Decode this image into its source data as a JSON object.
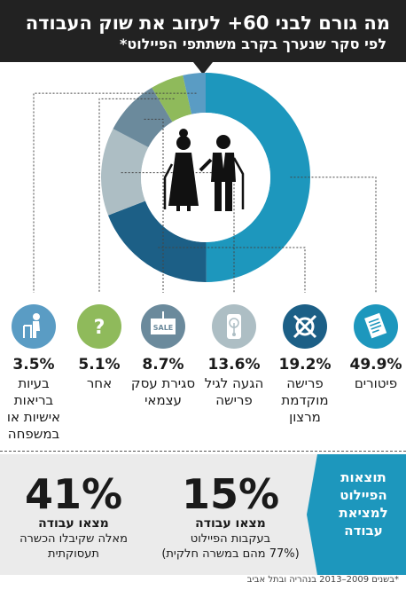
{
  "header": {
    "title": "מה גורם לבני 60+ לעזוב את שוק העבודה",
    "subtitle": "לפי סקר שנערך בקרב משתתפי הפיילוט*"
  },
  "chart_data": {
    "type": "pie",
    "style": "donut",
    "slices": [
      {
        "label": "פיטורים",
        "value": 49.9,
        "pct_text": "49.9%",
        "color": "#1d97bd",
        "icon": "document-icon"
      },
      {
        "label": "פרישה מוקדמת מרצון",
        "value": 19.2,
        "pct_text": "19.2%",
        "color": "#1c5f86",
        "icon": "broken-watch-icon"
      },
      {
        "label": "הגעה לגיל פרישה",
        "value": 13.6,
        "pct_text": "13.6%",
        "color": "#adbec4",
        "icon": "clock-icon"
      },
      {
        "label": "סגירת עסק עצמאי",
        "value": 8.7,
        "pct_text": "8.7%",
        "color": "#6b8a9c",
        "icon": "for-sale-sign-icon"
      },
      {
        "label": "אחר",
        "value": 5.1,
        "pct_text": "5.1%",
        "color": "#8fba5b",
        "icon": "question-mark-icon"
      },
      {
        "label": "בעיות בריאות אישיות או במשפחה",
        "value": 3.5,
        "pct_text": "3.5%",
        "color": "#5a9cc4",
        "icon": "person-with-walker-icon"
      }
    ]
  },
  "pilot": {
    "title": "תוצאות הפיילוט למציאת עבודה",
    "stats": [
      {
        "big": "15%",
        "head": "מצאו עבודה",
        "desc1": "בעקבות הפיילוט",
        "desc2": "(77% מהם במשרה חלקית)"
      },
      {
        "big": "41%",
        "head": "מצאו עבודה",
        "desc1": "מאלה שקיבלו הכשרה",
        "desc2": "תעסוקתית"
      }
    ]
  },
  "footnote": "*בשנים 2009–2013 בנהריה ובתל אביב"
}
